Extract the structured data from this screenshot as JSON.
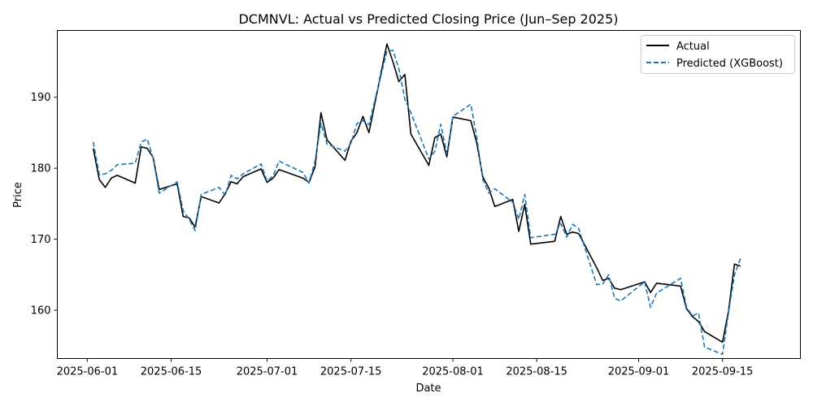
{
  "chart_data": {
    "type": "line",
    "title": "DCMNVL: Actual vs Predicted Closing Price (Jun–Sep 2025)",
    "xlabel": "Date",
    "ylabel": "Price",
    "x_axis_type": "date",
    "xlim": [
      "2025-05-27",
      "2025-09-28"
    ],
    "ylim": [
      153.2,
      199.4
    ],
    "xticks": [
      "2025-06-01",
      "2025-06-15",
      "2025-07-01",
      "2025-07-15",
      "2025-08-01",
      "2025-08-15",
      "2025-09-01",
      "2025-09-15"
    ],
    "yticks": [
      160,
      170,
      180,
      190
    ],
    "grid": false,
    "legend_position": "top-right",
    "series": [
      {
        "name": "Actual",
        "color": "#000000",
        "line_style": "solid",
        "x": [
          "2025-06-02",
          "2025-06-03",
          "2025-06-04",
          "2025-06-05",
          "2025-06-06",
          "2025-06-09",
          "2025-06-10",
          "2025-06-11",
          "2025-06-12",
          "2025-06-13",
          "2025-06-16",
          "2025-06-17",
          "2025-06-18",
          "2025-06-19",
          "2025-06-20",
          "2025-06-23",
          "2025-06-24",
          "2025-06-25",
          "2025-06-26",
          "2025-06-27",
          "2025-06-30",
          "2025-07-01",
          "2025-07-02",
          "2025-07-03",
          "2025-07-07",
          "2025-07-08",
          "2025-07-09",
          "2025-07-10",
          "2025-07-11",
          "2025-07-14",
          "2025-07-15",
          "2025-07-16",
          "2025-07-17",
          "2025-07-18",
          "2025-07-21",
          "2025-07-22",
          "2025-07-23",
          "2025-07-24",
          "2025-07-25",
          "2025-07-28",
          "2025-07-29",
          "2025-07-30",
          "2025-07-31",
          "2025-08-01",
          "2025-08-04",
          "2025-08-05",
          "2025-08-06",
          "2025-08-07",
          "2025-08-08",
          "2025-08-11",
          "2025-08-12",
          "2025-08-13",
          "2025-08-14",
          "2025-08-18",
          "2025-08-19",
          "2025-08-20",
          "2025-08-21",
          "2025-08-22",
          "2025-08-25",
          "2025-08-26",
          "2025-08-27",
          "2025-08-28",
          "2025-08-29",
          "2025-09-02",
          "2025-09-03",
          "2025-09-04",
          "2025-09-08",
          "2025-09-09",
          "2025-09-10",
          "2025-09-11",
          "2025-09-12",
          "2025-09-15",
          "2025-09-16",
          "2025-09-17",
          "2025-09-18"
        ],
        "values": [
          182.8,
          178.4,
          177.3,
          178.6,
          179.0,
          177.9,
          183.0,
          182.8,
          181.5,
          177.0,
          177.8,
          173.2,
          173.0,
          171.7,
          176.0,
          175.1,
          176.4,
          178.1,
          177.8,
          178.8,
          179.9,
          178.0,
          178.6,
          179.8,
          178.6,
          178.0,
          180.2,
          187.8,
          184.0,
          181.1,
          183.8,
          185.0,
          187.3,
          185.0,
          197.5,
          195.0,
          192.2,
          193.2,
          184.8,
          180.4,
          184.3,
          184.8,
          181.6,
          187.2,
          186.7,
          183.5,
          178.8,
          177.2,
          174.6,
          175.6,
          171.1,
          174.9,
          169.3,
          169.7,
          173.2,
          170.7,
          171.0,
          170.8,
          166.0,
          164.2,
          164.5,
          163.1,
          162.9,
          164.0,
          162.5,
          163.8,
          163.4,
          160.2,
          159.1,
          158.4,
          157.0,
          155.5,
          159.8,
          166.5,
          166.2
        ]
      },
      {
        "name": "Predicted (XGBoost)",
        "color": "#1f77b4",
        "line_style": "dashed",
        "x": [
          "2025-06-02",
          "2025-06-03",
          "2025-06-04",
          "2025-06-05",
          "2025-06-06",
          "2025-06-09",
          "2025-06-10",
          "2025-06-11",
          "2025-06-12",
          "2025-06-13",
          "2025-06-16",
          "2025-06-17",
          "2025-06-18",
          "2025-06-19",
          "2025-06-20",
          "2025-06-23",
          "2025-06-24",
          "2025-06-25",
          "2025-06-26",
          "2025-06-27",
          "2025-06-30",
          "2025-07-01",
          "2025-07-02",
          "2025-07-03",
          "2025-07-07",
          "2025-07-08",
          "2025-07-09",
          "2025-07-10",
          "2025-07-11",
          "2025-07-14",
          "2025-07-15",
          "2025-07-16",
          "2025-07-17",
          "2025-07-18",
          "2025-07-21",
          "2025-07-22",
          "2025-07-23",
          "2025-07-24",
          "2025-07-25",
          "2025-07-28",
          "2025-07-29",
          "2025-07-30",
          "2025-07-31",
          "2025-08-01",
          "2025-08-04",
          "2025-08-05",
          "2025-08-06",
          "2025-08-07",
          "2025-08-08",
          "2025-08-11",
          "2025-08-12",
          "2025-08-13",
          "2025-08-14",
          "2025-08-18",
          "2025-08-19",
          "2025-08-20",
          "2025-08-21",
          "2025-08-22",
          "2025-08-25",
          "2025-08-26",
          "2025-08-27",
          "2025-08-28",
          "2025-08-29",
          "2025-09-02",
          "2025-09-03",
          "2025-09-04",
          "2025-09-08",
          "2025-09-09",
          "2025-09-10",
          "2025-09-11",
          "2025-09-12",
          "2025-09-15",
          "2025-09-16",
          "2025-09-17",
          "2025-09-18"
        ],
        "values": [
          183.7,
          179.1,
          179.2,
          179.7,
          180.5,
          180.7,
          183.7,
          184.1,
          181.4,
          176.5,
          178.1,
          174.0,
          172.8,
          171.2,
          176.3,
          177.3,
          176.2,
          179.0,
          178.5,
          179.2,
          180.6,
          178.2,
          178.9,
          181.0,
          179.4,
          177.9,
          181.0,
          186.3,
          183.4,
          182.4,
          183.5,
          186.3,
          186.7,
          186.1,
          196.5,
          196.6,
          194.0,
          189.7,
          187.8,
          181.3,
          182.4,
          186.2,
          182.0,
          187.3,
          189.0,
          184.3,
          178.4,
          176.5,
          177.1,
          175.2,
          172.8,
          176.3,
          170.2,
          170.7,
          172.2,
          170.3,
          172.1,
          171.5,
          163.6,
          163.7,
          165.0,
          161.7,
          161.3,
          164.0,
          160.4,
          162.4,
          164.5,
          160.4,
          159.2,
          159.6,
          154.8,
          153.8,
          159.6,
          165.0,
          167.3
        ]
      }
    ]
  }
}
